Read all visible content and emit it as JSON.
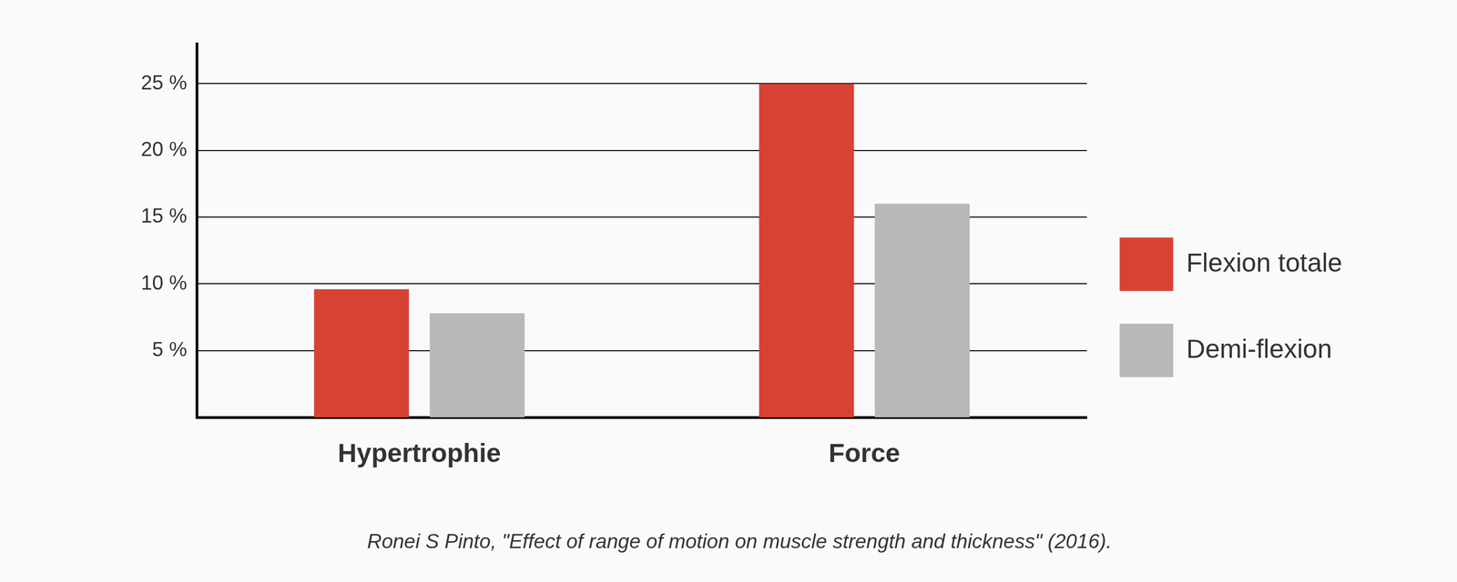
{
  "chart_data": {
    "type": "bar",
    "caption": "Ronei S Pinto, \"Effect of range of motion on muscle strength and thickness\" (2016).",
    "categories": [
      "Hypertrophie",
      "Force"
    ],
    "series": [
      {
        "name": "Flexion totale",
        "color": "#d84232",
        "values": [
          9.6,
          25
        ]
      },
      {
        "name": "Demi-flexion",
        "color": "#b8b8b8",
        "values": [
          7.8,
          16
        ]
      }
    ],
    "ylim": [
      0,
      28
    ],
    "yticks": [
      {
        "value": 5,
        "label": "5 %"
      },
      {
        "value": 10,
        "label": "10 %"
      },
      {
        "value": 15,
        "label": "15 %"
      },
      {
        "value": 20,
        "label": "20 %"
      },
      {
        "value": 25,
        "label": "25 %"
      }
    ],
    "grid": true,
    "legend": "right"
  }
}
